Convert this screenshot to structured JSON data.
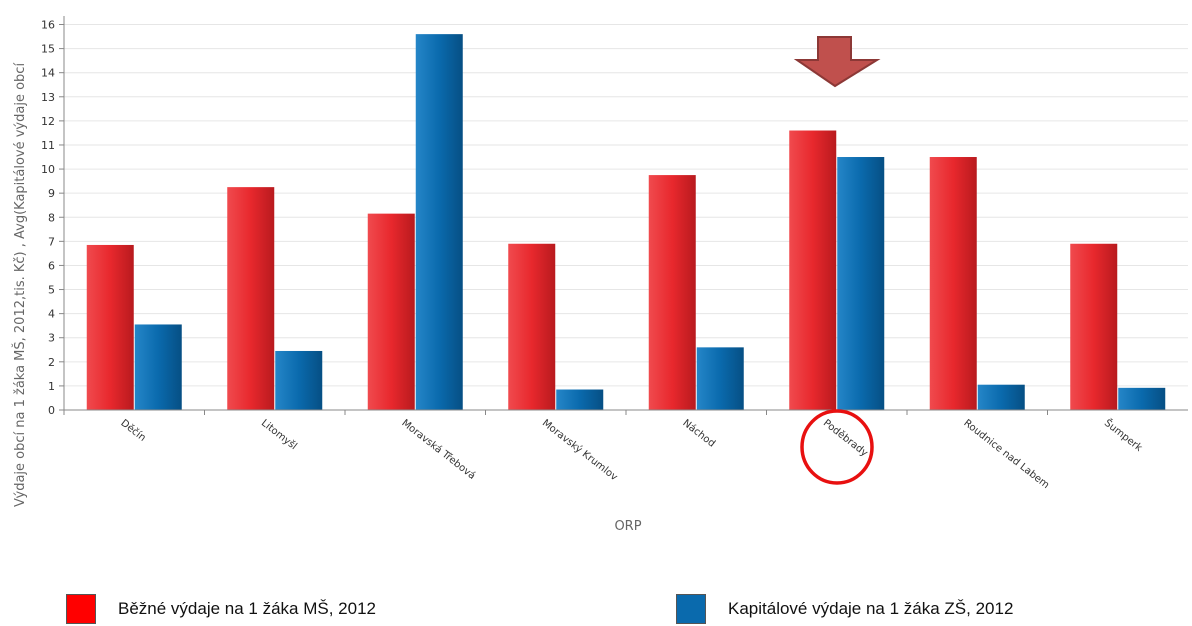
{
  "chart_data": {
    "type": "bar",
    "categories": [
      "Děčín",
      "Litomyšl",
      "Moravská Třebová",
      "Moravský Krumlov",
      "Náchod",
      "Poděbrady",
      "Roudnice nad Labem",
      "Šumperk"
    ],
    "series": [
      {
        "name": "Běžné výdaje na 1 žáka MŠ, 2012",
        "color": "#e8282d",
        "values": [
          6.85,
          9.25,
          8.15,
          6.9,
          9.75,
          11.6,
          10.5,
          6.9
        ]
      },
      {
        "name": "Kapitálové výdaje na 1 žáka ZŠ, 2012",
        "color": "#0a6aad",
        "values": [
          3.55,
          2.45,
          15.6,
          0.85,
          2.6,
          10.5,
          1.05,
          0.92
        ]
      }
    ],
    "ylim": [
      0,
      16
    ],
    "yticks": [
      "0",
      "1",
      "2",
      "3",
      "4",
      "5",
      "6",
      "7",
      "8",
      "9",
      "10",
      "11",
      "12",
      "13",
      "14",
      "15",
      "16"
    ],
    "xlabel": "ORP",
    "ylabel": "Výdaje obcí na 1 žáka MŠ, 2012,tis. Kč) , Avg(Kapitálové výdaje obcí",
    "grid": true,
    "legend_position": "bottom",
    "annotations": {
      "arrow": "down-arrow-icon above Poděbrady",
      "circle": "highlight-circle around Poděbrady label"
    }
  }
}
